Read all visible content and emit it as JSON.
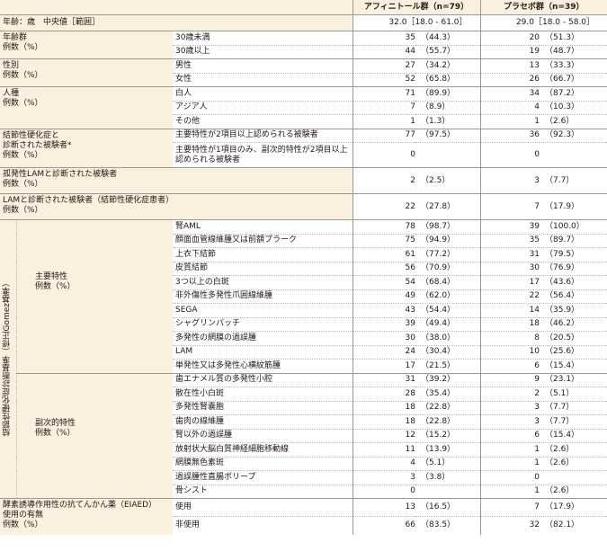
{
  "header": {
    "col_active": "アフィニトール群（n=79）",
    "col_placebo": "プラセボ群（n=39）"
  },
  "age": {
    "label": "年齢：歳　中央値［範囲］",
    "active": "32.0［18.0 - 61.0］",
    "placebo": "29.0［18.0 - 58.0］"
  },
  "groups": [
    {
      "label": [
        "年齢群",
        "例数（%）"
      ],
      "rows": [
        {
          "sub": "30歳未満",
          "an": "35",
          "ap": "（44.3）",
          "pn": "20",
          "pp": "（51.3）"
        },
        {
          "sub": "30歳以上",
          "an": "44",
          "ap": "（55.7）",
          "pn": "19",
          "pp": "（48.7）"
        }
      ]
    },
    {
      "label": [
        "性別",
        "例数（%）"
      ],
      "rows": [
        {
          "sub": "男性",
          "an": "27",
          "ap": "（34.2）",
          "pn": "13",
          "pp": "（33.3）"
        },
        {
          "sub": "女性",
          "an": "52",
          "ap": "（65.8）",
          "pn": "26",
          "pp": "（66.7）"
        }
      ]
    },
    {
      "label": [
        "人種",
        "例数（%）"
      ],
      "rows": [
        {
          "sub": "白人",
          "an": "71",
          "ap": "（89.9）",
          "pn": "34",
          "pp": "（87.2）"
        },
        {
          "sub": "アジア人",
          "an": "7",
          "ap": "（8.9）",
          "pn": "4",
          "pp": "（10.3）"
        },
        {
          "sub": "その他",
          "an": "1",
          "ap": "（1.3）",
          "pn": "1",
          "pp": "（2.6）"
        }
      ]
    },
    {
      "label": [
        "結節性硬化症と",
        "診断された被験者*",
        "例数（%）"
      ],
      "rows": [
        {
          "sub": "主要特性が2項目以上認められる被験者",
          "an": "77",
          "ap": "（97.5）",
          "pn": "36",
          "pp": "（92.3）"
        },
        {
          "sub": "主要特性が1項目のみ、副次的特性が2項目以上認められる被験者",
          "an": "0",
          "ap": "",
          "pn": "0",
          "pp": ""
        }
      ]
    }
  ],
  "single_rows": [
    {
      "label": [
        "孤発性LAMと診断された被験者",
        "例数（%）"
      ],
      "an": "2",
      "ap": "（2.5）",
      "pn": "3",
      "pp": "（7.7）"
    },
    {
      "label": [
        "LAMと診断された被験者（結節性硬化症患者）",
        "例数（%）"
      ],
      "an": "22",
      "ap": "（27.8）",
      "pn": "7",
      "pp": "（17.9）"
    }
  ],
  "criteria": {
    "vertical_label": "結節性硬化症診断基準（修正Gomez基準）",
    "major": {
      "label": [
        "主要特性",
        "例数（%）"
      ],
      "rows": [
        {
          "sub": "腎AML",
          "an": "78",
          "ap": "（98.7）",
          "pn": "39",
          "pp": "（100.0）"
        },
        {
          "sub": "顔面血管線維腫又は前額プラーク",
          "an": "75",
          "ap": "（94.9）",
          "pn": "35",
          "pp": "（89.7）"
        },
        {
          "sub": "上衣下結節",
          "an": "61",
          "ap": "（77.2）",
          "pn": "31",
          "pp": "（79.5）"
        },
        {
          "sub": "皮質結節",
          "an": "56",
          "ap": "（70.9）",
          "pn": "30",
          "pp": "（76.9）"
        },
        {
          "sub": "3つ以上の白斑",
          "an": "54",
          "ap": "（68.4）",
          "pn": "17",
          "pp": "（43.6）"
        },
        {
          "sub": "非外傷性多発性爪囲線維腫",
          "an": "49",
          "ap": "（62.0）",
          "pn": "22",
          "pp": "（56.4）"
        },
        {
          "sub": "SEGA",
          "an": "43",
          "ap": "（54.4）",
          "pn": "14",
          "pp": "（35.9）"
        },
        {
          "sub": "シャグリンパッチ",
          "an": "39",
          "ap": "（49.4）",
          "pn": "18",
          "pp": "（46.2）"
        },
        {
          "sub": "多発性の網膜の過誤腫",
          "an": "30",
          "ap": "（38.0）",
          "pn": "8",
          "pp": "（20.5）"
        },
        {
          "sub": "LAM",
          "an": "24",
          "ap": "（30.4）",
          "pn": "10",
          "pp": "（25.6）"
        },
        {
          "sub": "単発性又は多発性心横紋筋腫",
          "an": "17",
          "ap": "（21.5）",
          "pn": "6",
          "pp": "（15.4）"
        }
      ]
    },
    "minor": {
      "label": [
        "副次的特性",
        "例数（%）"
      ],
      "rows": [
        {
          "sub": "歯エナメル質の多発性小腔",
          "an": "31",
          "ap": "（39.2）",
          "pn": "9",
          "pp": "（23.1）"
        },
        {
          "sub": "散在性小白斑",
          "an": "28",
          "ap": "（35.4）",
          "pn": "2",
          "pp": "（5.1）"
        },
        {
          "sub": "多発性腎嚢胞",
          "an": "18",
          "ap": "（22.8）",
          "pn": "3",
          "pp": "（7.7）"
        },
        {
          "sub": "歯肉の線維腫",
          "an": "18",
          "ap": "（22.8）",
          "pn": "3",
          "pp": "（7.7）"
        },
        {
          "sub": "腎以外の過誤腫",
          "an": "12",
          "ap": "（15.2）",
          "pn": "6",
          "pp": "（15.4）"
        },
        {
          "sub": "放射状大脳白質神経細胞移動線",
          "an": "11",
          "ap": "（13.9）",
          "pn": "1",
          "pp": "（2.6）"
        },
        {
          "sub": "網膜無色素斑",
          "an": "4",
          "ap": "（5.1）",
          "pn": "1",
          "pp": "（2.6）"
        },
        {
          "sub": "過誤腫性直腸ポリープ",
          "an": "3",
          "ap": "（3.8）",
          "pn": "0",
          "pp": ""
        },
        {
          "sub": "骨シスト",
          "an": "0",
          "ap": "",
          "pn": "1",
          "pp": "（2.6）"
        }
      ]
    }
  },
  "eiaed": {
    "label": [
      "酵素誘導作用性の抗てんかん薬（EIAED）",
      "使用の有無",
      "例数（%）"
    ],
    "rows": [
      {
        "sub": "使用",
        "an": "13",
        "ap": "（16.5）",
        "pn": "7",
        "pp": "（17.9）"
      },
      {
        "sub": "非使用",
        "an": "66",
        "ap": "（83.5）",
        "pn": "32",
        "pp": "（82.1）"
      }
    ]
  }
}
